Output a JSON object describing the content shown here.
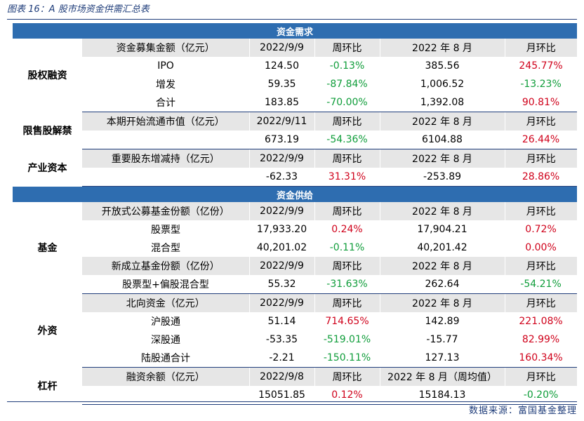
{
  "title": "图表 16：A 股市场资金供需汇总表",
  "sections": {
    "demand": "资金需求",
    "supply": "资金供给"
  },
  "groups": {
    "equity": {
      "label": "股权融资",
      "header": [
        "资金募集金额（亿元）",
        "2022/9/9",
        "周环比",
        "2022 年 8 月",
        "月环比"
      ],
      "rows": [
        {
          "name": "IPO",
          "v1": "124.50",
          "wow": "-0.13%",
          "v2": "385.56",
          "mom": "245.77%"
        },
        {
          "name": "增发",
          "v1": "59.35",
          "wow": "-87.84%",
          "v2": "1,006.52",
          "mom": "-13.23%"
        },
        {
          "name": "合计",
          "v1": "183.85",
          "wow": "-70.00%",
          "v2": "1,392.08",
          "mom": "90.81%"
        }
      ]
    },
    "restricted": {
      "label": "限售股解禁",
      "header": [
        "本期开始流通市值（亿元）",
        "2022/9/11",
        "周环比",
        "2022 年 8 月",
        "月环比"
      ],
      "rows": [
        {
          "name": "",
          "v1": "673.19",
          "wow": "-54.36%",
          "v2": "6104.88",
          "mom": "26.44%"
        }
      ]
    },
    "industry": {
      "label": "产业资本",
      "header": [
        "重要股东增减持（亿元）",
        "2022/9/9",
        "周环比",
        "2022 年 8 月",
        "月环比"
      ],
      "rows": [
        {
          "name": "",
          "v1": "-62.33",
          "wow": "31.31%",
          "v2": "-253.89",
          "mom": "28.86%"
        }
      ]
    },
    "fund": {
      "label": "基金",
      "header": [
        "开放式公募基金份额（亿份）",
        "2022/9/9",
        "周环比",
        "2022 年 8 月",
        "月环比"
      ],
      "rows": [
        {
          "name": "股票型",
          "v1": "17,933.20",
          "wow": "0.24%",
          "v2": "17,904.21",
          "mom": "0.72%"
        },
        {
          "name": "混合型",
          "v1": "40,201.02",
          "wow": "-0.11%",
          "v2": "40,201.42",
          "mom": "0.00%"
        }
      ],
      "header2": [
        "新成立基金份额（亿份）",
        "2022/9/9",
        "周环比",
        "2022 年 8 月",
        "月环比"
      ],
      "rows2": [
        {
          "name": "股票型+偏股混合型",
          "v1": "55.32",
          "wow": "-31.63%",
          "v2": "262.64",
          "mom": "-54.21%"
        }
      ]
    },
    "foreign": {
      "label": "外资",
      "header": [
        "北向资金（亿元）",
        "2022/9/9",
        "周环比",
        "2022 年 8 月",
        "月环比"
      ],
      "rows": [
        {
          "name": "沪股通",
          "v1": "51.14",
          "wow": "714.65%",
          "v2": "142.89",
          "mom": "221.08%"
        },
        {
          "name": "深股通",
          "v1": "-53.35",
          "wow": "-519.01%",
          "v2": "-15.77",
          "mom": "82.99%"
        },
        {
          "name": "陆股通合计",
          "v1": "-2.21",
          "wow": "-150.11%",
          "v2": "127.13",
          "mom": "160.34%"
        }
      ]
    },
    "leverage": {
      "label": "杠杆",
      "header": [
        "融资余额（亿元）",
        "2022/9/8",
        "周环比",
        "2022 年 8 月（周均值）",
        "月环比"
      ],
      "rows": [
        {
          "name": "",
          "v1": "15051.85",
          "wow": "0.12%",
          "v2": "15184.13",
          "mom": "-0.20%"
        }
      ]
    }
  },
  "source": "数据来源：富国基金整理",
  "colors": {
    "section_bg": "#2e6db0",
    "header_bg": "#e6e6e6",
    "positive": "#d0021b",
    "negative": "#0f9d3a",
    "rule": "#1f3d7a"
  }
}
